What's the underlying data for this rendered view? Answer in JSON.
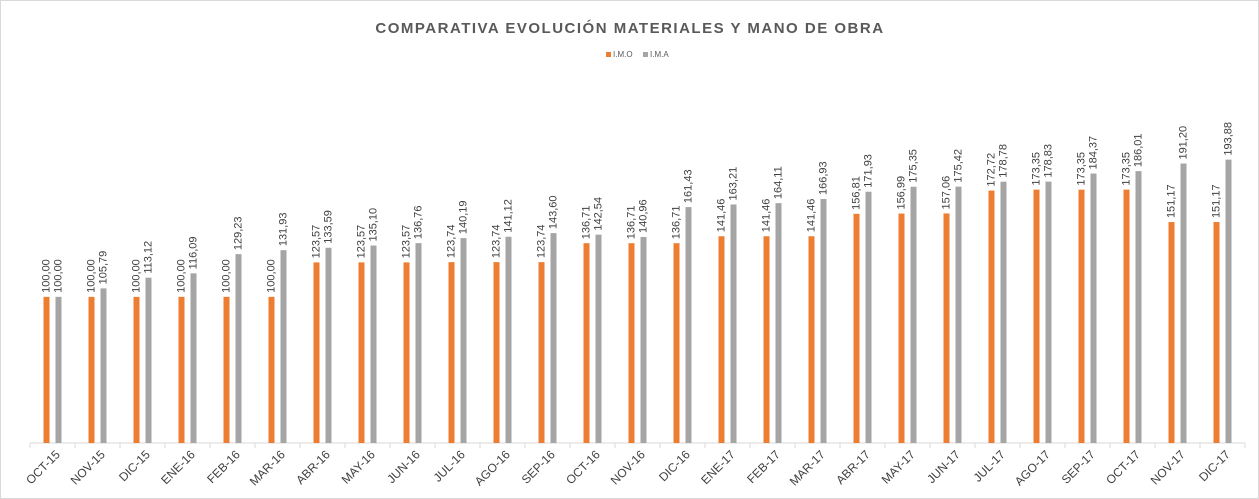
{
  "chart_data": {
    "type": "bar",
    "title": "COMPARATIVA EVOLUCIÓN MATERIALES Y MANO DE OBRA",
    "categories": [
      "OCT-15",
      "NOV-15",
      "DIC-15",
      "ENE-16",
      "FEB-16",
      "MAR-16",
      "ABR-16",
      "MAY-16",
      "JUN-16",
      "JUL-16",
      "AGO-16",
      "SEP-16",
      "OCT-16",
      "NOV-16",
      "DIC-16",
      "ENE-17",
      "FEB-17",
      "MAR-17",
      "ABR-17",
      "MAY-17",
      "JUN-17",
      "JUL-17",
      "AGO-17",
      "SEP-17",
      "OCT-17",
      "NOV-17",
      "DIC-17"
    ],
    "series": [
      {
        "name": "I.M.O",
        "color": "#ed7d31",
        "values": [
          100,
          100,
          100,
          100,
          100,
          100,
          123.57,
          123.57,
          123.57,
          123.74,
          123.74,
          123.74,
          136.71,
          136.71,
          136.71,
          141.46,
          141.46,
          141.46,
          156.81,
          156.99,
          157.06,
          172.72,
          173.35,
          173.35,
          173.35,
          151.17,
          151.17
        ],
        "value_labels": [
          "100,00",
          "100,00",
          "100,00",
          "100,00",
          "100,00",
          "100,00",
          "123,57",
          "123,57",
          "123,57",
          "123,74",
          "123,74",
          "123,74",
          "136,71",
          "136,71",
          "136,71",
          "141,46",
          "141,46",
          "141,46",
          "156,81",
          "156,99",
          "157,06",
          "172,72",
          "173,35",
          "173,35",
          "173,35",
          "151,17",
          "151,17"
        ]
      },
      {
        "name": "I.M.A",
        "color": "#a5a5a5",
        "values": [
          100,
          105.79,
          113.12,
          116.09,
          129.23,
          131.93,
          133.59,
          135.1,
          136.76,
          140.19,
          141.12,
          143.6,
          142.54,
          140.96,
          161.43,
          163.21,
          164.11,
          166.93,
          171.93,
          175.35,
          175.42,
          178.78,
          178.83,
          184.37,
          186.01,
          191.2,
          193.88
        ],
        "value_labels": [
          "100,00",
          "105,79",
          "113,12",
          "116,09",
          "129,23",
          "131,93",
          "133,59",
          "135,10",
          "136,76",
          "140,19",
          "141,12",
          "143,60",
          "142,54",
          "140,96",
          "161,43",
          "163,21",
          "164,11",
          "166,93",
          "171,93",
          "175,35",
          "175,42",
          "178,78",
          "178,83",
          "184,37",
          "186,01",
          "191,20",
          "193,88"
        ]
      }
    ],
    "ylim": [
      0,
      260
    ],
    "legend": "top"
  }
}
